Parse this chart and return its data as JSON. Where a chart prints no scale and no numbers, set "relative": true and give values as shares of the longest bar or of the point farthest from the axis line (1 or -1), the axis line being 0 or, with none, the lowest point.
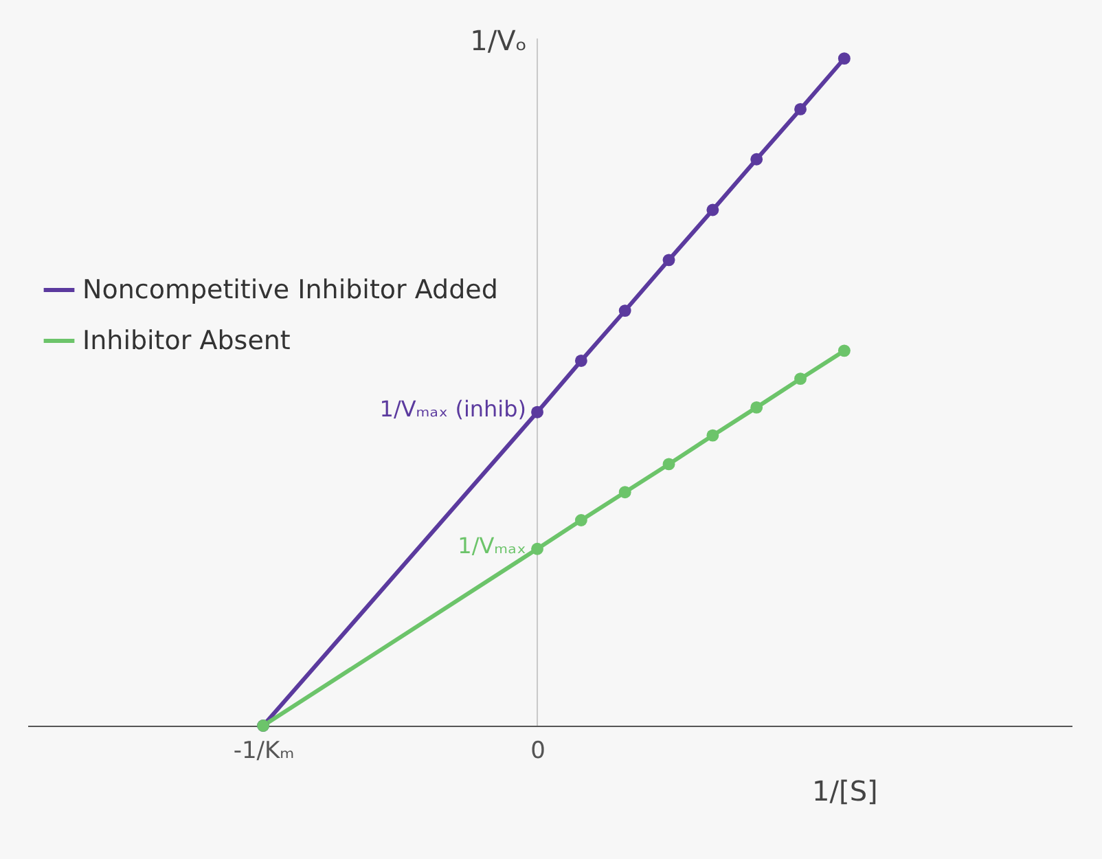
{
  "chart_data": {
    "type": "line",
    "relative": true,
    "xlabel": "1/[S]",
    "ylabel": "1/Vₒ",
    "x": [
      -1,
      0,
      0.16,
      0.32,
      0.48,
      0.64,
      0.8,
      0.96,
      1.12
    ],
    "xlim": [
      -1.86,
      1.95
    ],
    "xticks": [
      {
        "value": -1,
        "label": "-1/Kₘ"
      },
      0
    ],
    "series": [
      {
        "name": "Noncompetitive Inhibitor Added",
        "color": "#5b3a9e",
        "values": [
          0,
          0.47,
          0.547,
          0.622,
          0.698,
          0.773,
          0.849,
          0.924,
          1
        ]
      },
      {
        "name": "Inhibitor Absent",
        "color": "#6cc46a",
        "values": [
          0,
          0.265,
          0.308,
          0.35,
          0.392,
          0.435,
          0.477,
          0.52,
          0.562
        ]
      }
    ],
    "annotations": [
      {
        "text": "1/Vₘₐₓ (inhib)",
        "x": 0,
        "y": 0.47
      },
      {
        "text": "1/Vₘₐₓ",
        "x": 0,
        "y": 0.265
      }
    ],
    "ref_lines": [
      {
        "axis": "x",
        "value": 0,
        "color": "#c8c8c8"
      }
    ],
    "marker": "circle",
    "legend": "left",
    "grid": false
  }
}
